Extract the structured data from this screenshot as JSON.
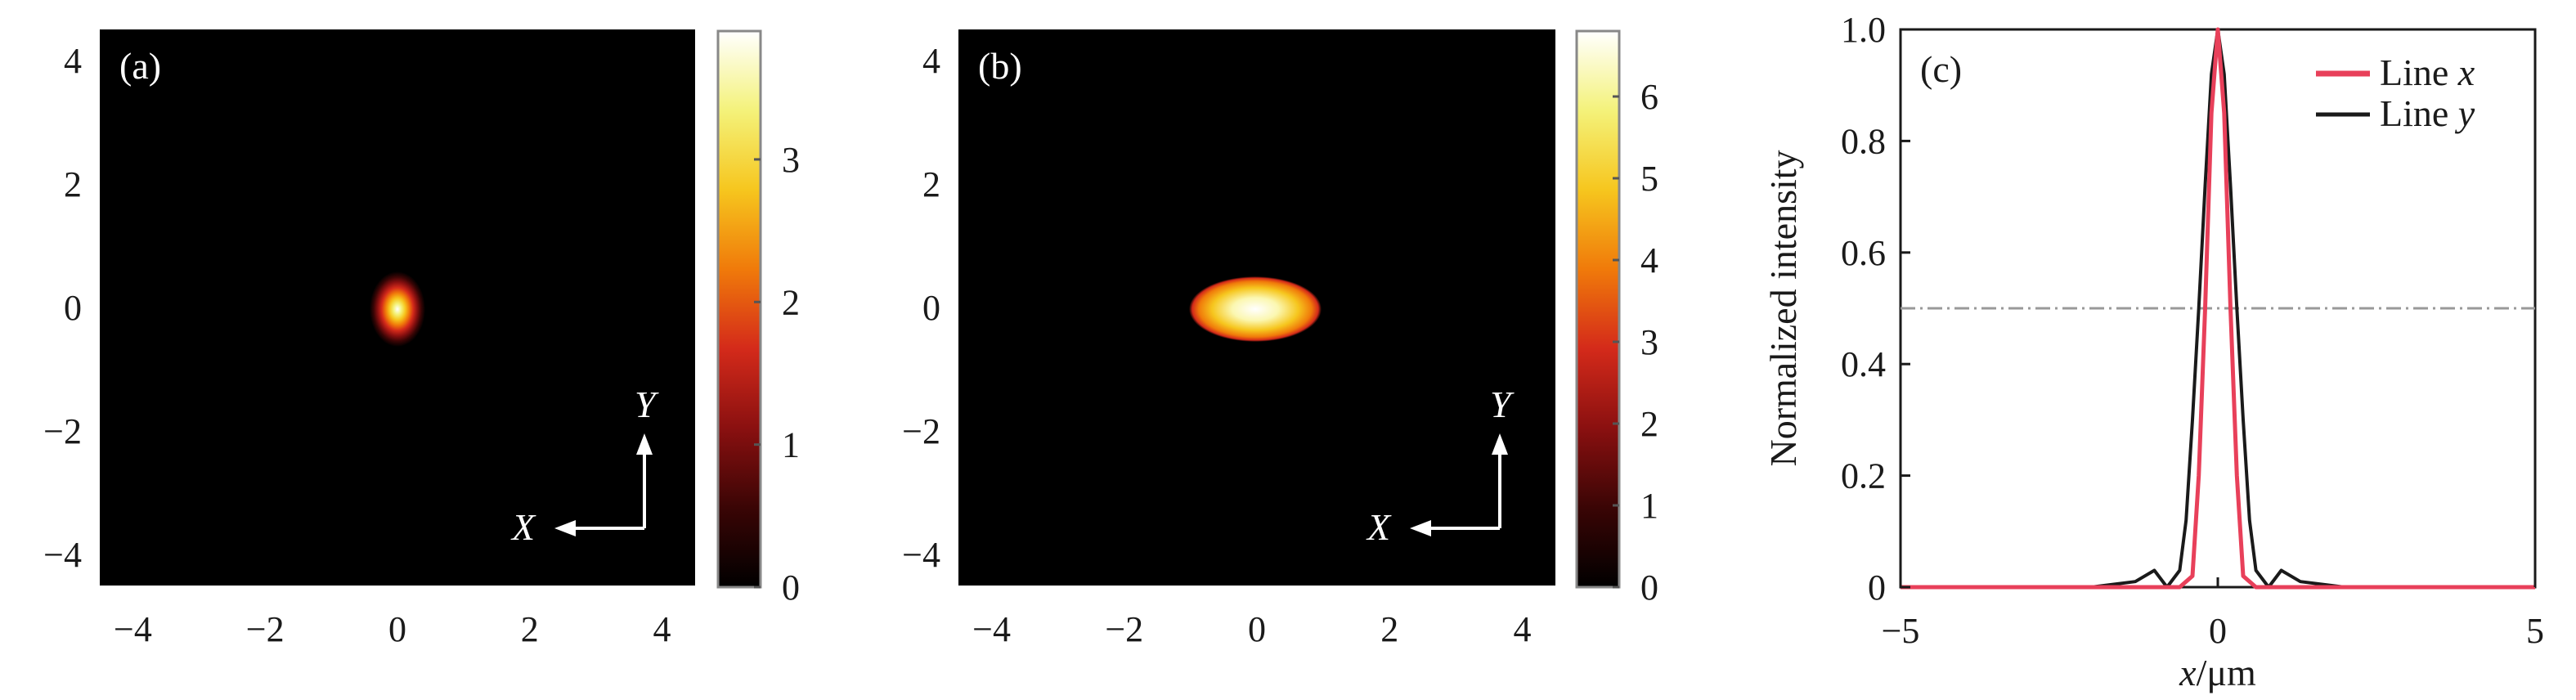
{
  "colors": {
    "map_background": "#000000",
    "axis": "#1a1a1a",
    "line_x": "#e8405a",
    "line_y": "#1a1a1a",
    "half_max": "#999999",
    "colormap": [
      "#000000",
      "#3a0505",
      "#8a1010",
      "#d42a1a",
      "#f07a0a",
      "#f6c61e",
      "#f4f27a",
      "#ffffff"
    ]
  },
  "chart_data": [
    {
      "type": "heatmap",
      "panel_label": "(a)",
      "xlim": [
        -4.5,
        4.5
      ],
      "ylim": [
        -4.5,
        4.5
      ],
      "x_ticks": [
        -4,
        -2,
        0,
        2,
        4
      ],
      "x_tick_labels": [
        "−4",
        "−2",
        "0",
        "2",
        "4"
      ],
      "y_ticks": [
        4,
        2,
        0,
        -2,
        -4
      ],
      "y_tick_labels": [
        "4",
        "2",
        "0",
        "−2",
        "−4"
      ],
      "spot": {
        "center": [
          0,
          0
        ],
        "sigma_x": 0.1,
        "sigma_y": 0.17,
        "shape": "gaussian"
      },
      "colorbar": {
        "min": 0,
        "max": 3.9,
        "ticks": [
          0,
          1,
          2,
          3
        ],
        "tick_labels": [
          "0",
          "1",
          "2",
          "3"
        ]
      },
      "axes_indicator": {
        "x_label": "X",
        "y_label": "Y"
      }
    },
    {
      "type": "heatmap",
      "panel_label": "(b)",
      "xlim": [
        -4.5,
        4.5
      ],
      "ylim": [
        -4.5,
        4.5
      ],
      "x_ticks": [
        -4,
        -2,
        0,
        2,
        4
      ],
      "x_tick_labels": [
        "−4",
        "−2",
        "0",
        "2",
        "4"
      ],
      "y_ticks": [
        4,
        2,
        0,
        -2,
        -4
      ],
      "y_tick_labels": [
        "4",
        "2",
        "0",
        "−2",
        "−4"
      ],
      "spot": {
        "center": [
          0,
          0
        ],
        "half_width_x": 0.9,
        "half_width_y": 0.45,
        "shape": "flat-top"
      },
      "colorbar": {
        "min": 0,
        "max": 6.8,
        "ticks": [
          0,
          1,
          2,
          3,
          4,
          5,
          6
        ],
        "tick_labels": [
          "0",
          "1",
          "2",
          "3",
          "4",
          "5",
          "6"
        ]
      },
      "axes_indicator": {
        "x_label": "X",
        "y_label": "Y"
      }
    },
    {
      "type": "line",
      "panel_label": "(c)",
      "xlabel_var": "x",
      "xlabel_unit": "/μm",
      "ylabel": "Normalized intensity",
      "xlim": [
        -5,
        5
      ],
      "ylim": [
        0,
        1.0
      ],
      "x_ticks": [
        -5,
        0,
        5
      ],
      "x_tick_labels": [
        "−5",
        "0",
        "5"
      ],
      "y_ticks": [
        0,
        0.2,
        0.4,
        0.6,
        0.8,
        1.0
      ],
      "y_tick_labels": [
        "0",
        "0.2",
        "0.4",
        "0.6",
        "0.8",
        "1.0"
      ],
      "half_max_line": 0.5,
      "legend_position": "top-right",
      "series": [
        {
          "name": "Line x",
          "legend_prefix": "Line ",
          "legend_var": "x",
          "color_key": "line_x",
          "x": [
            -5,
            -1.5,
            -1.0,
            -0.6,
            -0.4,
            -0.3,
            -0.2,
            -0.1,
            0,
            0.1,
            0.2,
            0.3,
            0.4,
            0.6,
            1.0,
            1.5,
            5
          ],
          "values": [
            0,
            0,
            0,
            0,
            0.02,
            0.2,
            0.5,
            0.85,
            1.0,
            0.85,
            0.5,
            0.2,
            0.02,
            0,
            0,
            0,
            0
          ]
        },
        {
          "name": "Line y",
          "legend_prefix": "Line ",
          "legend_var": "y",
          "color_key": "line_y",
          "x": [
            -5,
            -2,
            -1.3,
            -1.0,
            -0.8,
            -0.6,
            -0.5,
            -0.4,
            -0.3,
            -0.2,
            -0.1,
            0,
            0.1,
            0.2,
            0.3,
            0.4,
            0.5,
            0.6,
            0.8,
            1.0,
            1.3,
            2,
            5
          ],
          "values": [
            0,
            0,
            0.01,
            0.03,
            0.0,
            0.03,
            0.12,
            0.3,
            0.5,
            0.72,
            0.92,
            1.0,
            0.92,
            0.72,
            0.5,
            0.3,
            0.12,
            0.03,
            0.0,
            0.03,
            0.01,
            0,
            0
          ]
        }
      ]
    }
  ]
}
